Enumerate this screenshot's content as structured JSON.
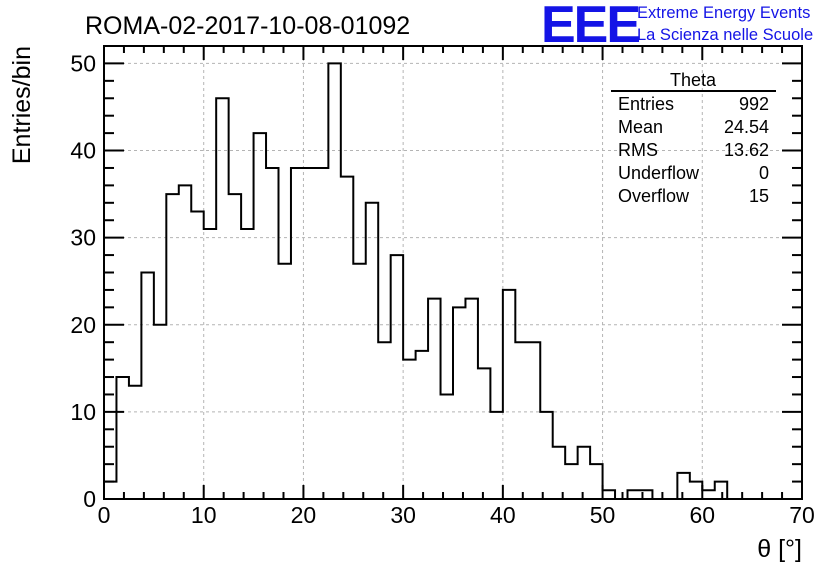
{
  "header": {
    "title": "ROMA-02-2017-10-08-01092"
  },
  "logo": {
    "mark": "EEE",
    "line1": "Extreme Energy Events",
    "line2": "La Scienza nelle Scuole",
    "color": "#1414e6"
  },
  "stats_box": {
    "title": "Theta",
    "rows": [
      {
        "label": "Entries",
        "value": "992"
      },
      {
        "label": "Mean",
        "value": "24.54"
      },
      {
        "label": "RMS",
        "value": "13.62"
      },
      {
        "label": "Underflow",
        "value": "0"
      },
      {
        "label": "Overflow",
        "value": "15"
      }
    ]
  },
  "chart_data": {
    "type": "bar",
    "style": "step-histogram",
    "title": "ROMA-02-2017-10-08-01092",
    "xlabel": "θ [°]",
    "ylabel": "Entries/bin",
    "xlim": [
      0,
      70
    ],
    "ylim": [
      0,
      52
    ],
    "bin_width": 1.25,
    "x_ticks": [
      0,
      10,
      20,
      30,
      40,
      50,
      60,
      70
    ],
    "y_ticks": [
      0,
      10,
      20,
      30,
      40,
      50
    ],
    "grid": true,
    "legend": "none",
    "line_color": "#000000",
    "values": [
      2,
      14,
      13,
      26,
      20,
      35,
      36,
      33,
      31,
      46,
      35,
      31,
      42,
      38,
      27,
      38,
      38,
      38,
      50,
      37,
      27,
      34,
      18,
      28,
      16,
      17,
      23,
      12,
      22,
      23,
      15,
      10,
      24,
      18,
      18,
      10,
      6,
      4,
      6,
      4,
      1,
      0,
      1,
      1,
      0,
      0,
      3,
      2,
      1,
      2,
      0,
      0,
      0,
      0,
      0,
      0
    ]
  }
}
